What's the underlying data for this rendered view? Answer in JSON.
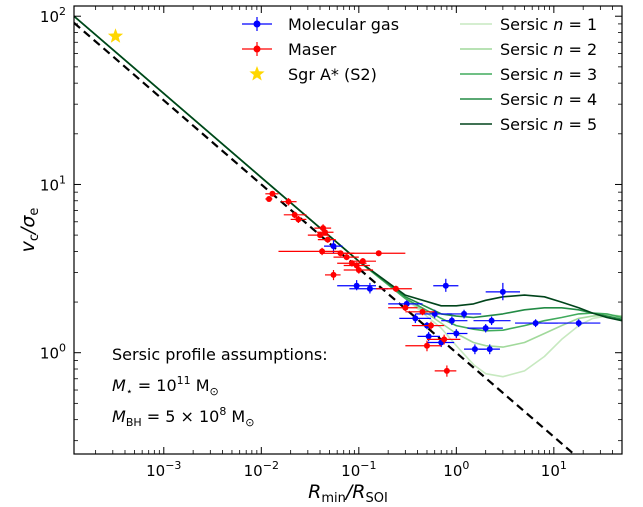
{
  "chart_data": {
    "type": "scatter",
    "x_scale": "log",
    "y_scale": "log",
    "xlim": [
      0.00012,
      50
    ],
    "ylim": [
      0.25,
      115
    ],
    "xlabel": {
      "main": "R",
      "sub1": "min",
      "sep": "/R",
      "sub2": "SOI"
    },
    "ylabel": {
      "main": "v",
      "sub1": "c",
      "sep": "/σ",
      "sub2": "e"
    },
    "x_ticks": [
      {
        "value": 0.001,
        "base": "10",
        "exp": "−3"
      },
      {
        "value": 0.01,
        "base": "10",
        "exp": "−2"
      },
      {
        "value": 0.1,
        "base": "10",
        "exp": "−1"
      },
      {
        "value": 1,
        "base": "10",
        "exp": "0"
      },
      {
        "value": 10,
        "base": "10",
        "exp": "1"
      }
    ],
    "y_ticks": [
      {
        "value": 1,
        "base": "10",
        "exp": "0"
      },
      {
        "value": 10,
        "base": "10",
        "exp": "1"
      },
      {
        "value": 100,
        "base": "10",
        "exp": "2"
      }
    ],
    "grid": false,
    "legend_position": "top-right",
    "legend": [
      {
        "label": "Molecular gas",
        "kind": "errpoint",
        "color": "#0000ff"
      },
      {
        "label": "Maser",
        "kind": "errpoint",
        "color": "#ff0000"
      },
      {
        "label": "Sgr A* (S2)",
        "kind": "star",
        "color": "#ffd700"
      },
      {
        "label_prefix": "Sersic ",
        "label_var": "n",
        "label_suffix": " = 1",
        "kind": "line",
        "color": "#c7e9c0"
      },
      {
        "label_prefix": "Sersic ",
        "label_var": "n",
        "label_suffix": " = 2",
        "kind": "line",
        "color": "#a1d99b"
      },
      {
        "label_prefix": "Sersic ",
        "label_var": "n",
        "label_suffix": " = 3",
        "kind": "line",
        "color": "#41ab5d"
      },
      {
        "label_prefix": "Sersic ",
        "label_var": "n",
        "label_suffix": " = 4",
        "kind": "line",
        "color": "#238b45"
      },
      {
        "label_prefix": "Sersic ",
        "label_var": "n",
        "label_suffix": " = 5",
        "kind": "line",
        "color": "#00441b"
      }
    ],
    "annotation": {
      "title": "Sersic profile assumptions:",
      "line1": {
        "sym": "M",
        "sub": "⋆",
        "eq": " = 10",
        "exp": "11",
        "unit": " M",
        "usub": "⊙"
      },
      "line2": {
        "sym": "M",
        "sub": "BH",
        "eq": " = 5 × 10",
        "exp": "8",
        "unit": " M",
        "usub": "⊙"
      }
    },
    "series": [
      {
        "name": "Molecular gas",
        "color": "#0000ff",
        "points": [
          {
            "x": 0.055,
            "y": 4.3,
            "xlo": 0.044,
            "xhi": 0.068,
            "ylo": 3.9,
            "yhi": 4.7
          },
          {
            "x": 0.095,
            "y": 2.5,
            "xlo": 0.06,
            "xhi": 0.15,
            "ylo": 2.35,
            "yhi": 2.7
          },
          {
            "x": 0.13,
            "y": 2.4,
            "xlo": 0.08,
            "xhi": 0.2,
            "ylo": 2.25,
            "yhi": 2.6
          },
          {
            "x": 0.31,
            "y": 1.95,
            "xlo": 0.2,
            "xhi": 0.45,
            "ylo": 1.85,
            "yhi": 2.05
          },
          {
            "x": 0.38,
            "y": 1.6,
            "xlo": 0.26,
            "xhi": 0.55,
            "ylo": 1.5,
            "yhi": 1.7
          },
          {
            "x": 0.5,
            "y": 1.45,
            "xlo": 0.36,
            "xhi": 0.7,
            "ylo": 1.38,
            "yhi": 1.52
          },
          {
            "x": 0.6,
            "y": 1.7,
            "xlo": 0.38,
            "xhi": 0.9,
            "ylo": 1.6,
            "yhi": 1.8
          },
          {
            "x": 0.52,
            "y": 1.25,
            "xlo": 0.4,
            "xhi": 0.68,
            "ylo": 1.17,
            "yhi": 1.33
          },
          {
            "x": 0.7,
            "y": 1.15,
            "xlo": 0.5,
            "xhi": 0.95,
            "ylo": 1.08,
            "yhi": 1.22
          },
          {
            "x": 0.78,
            "y": 2.5,
            "xlo": 0.58,
            "xhi": 1.05,
            "ylo": 2.3,
            "yhi": 2.75
          },
          {
            "x": 0.9,
            "y": 1.55,
            "xlo": 0.7,
            "xhi": 1.3,
            "ylo": 1.46,
            "yhi": 1.64
          },
          {
            "x": 1.0,
            "y": 1.3,
            "xlo": 0.8,
            "xhi": 1.3,
            "ylo": 1.22,
            "yhi": 1.38
          },
          {
            "x": 1.2,
            "y": 1.7,
            "xlo": 0.8,
            "xhi": 1.8,
            "ylo": 1.6,
            "yhi": 1.8
          },
          {
            "x": 1.55,
            "y": 1.05,
            "xlo": 1.2,
            "xhi": 2.0,
            "ylo": 0.98,
            "yhi": 1.12
          },
          {
            "x": 2.0,
            "y": 1.4,
            "xlo": 1.3,
            "xhi": 3.0,
            "ylo": 1.32,
            "yhi": 1.48
          },
          {
            "x": 2.2,
            "y": 1.05,
            "xlo": 1.7,
            "xhi": 2.8,
            "ylo": 0.98,
            "yhi": 1.12
          },
          {
            "x": 2.3,
            "y": 1.55,
            "xlo": 1.5,
            "xhi": 3.6,
            "ylo": 1.46,
            "yhi": 1.64
          },
          {
            "x": 3.0,
            "y": 2.3,
            "xlo": 2.0,
            "xhi": 4.5,
            "ylo": 2.05,
            "yhi": 2.6
          },
          {
            "x": 6.5,
            "y": 1.5,
            "xlo": 4.0,
            "xhi": 11,
            "ylo": 1.42,
            "yhi": 1.58
          },
          {
            "x": 18,
            "y": 1.5,
            "xlo": 8,
            "xhi": 30,
            "ylo": 1.42,
            "yhi": 1.58
          }
        ]
      },
      {
        "name": "Maser",
        "color": "#ff0000",
        "points": [
          {
            "x": 0.012,
            "y": 8.2,
            "xlo": 0.011,
            "xhi": 0.013,
            "ylo": 7.9,
            "yhi": 8.5
          },
          {
            "x": 0.013,
            "y": 8.8,
            "xlo": 0.011,
            "xhi": 0.015,
            "ylo": 8.5,
            "yhi": 9.1
          },
          {
            "x": 0.019,
            "y": 7.9,
            "xlo": 0.016,
            "xhi": 0.023,
            "ylo": 7.5,
            "yhi": 8.3
          },
          {
            "x": 0.022,
            "y": 6.6,
            "xlo": 0.017,
            "xhi": 0.029,
            "ylo": 6.3,
            "yhi": 6.9
          },
          {
            "x": 0.024,
            "y": 6.2,
            "xlo": 0.02,
            "xhi": 0.029,
            "ylo": 5.9,
            "yhi": 6.5
          },
          {
            "x": 0.04,
            "y": 5.0,
            "xlo": 0.03,
            "xhi": 0.05,
            "ylo": 4.8,
            "yhi": 5.2
          },
          {
            "x": 0.043,
            "y": 5.5,
            "xlo": 0.035,
            "xhi": 0.052,
            "ylo": 5.2,
            "yhi": 5.8
          },
          {
            "x": 0.045,
            "y": 5.2,
            "xlo": 0.037,
            "xhi": 0.055,
            "ylo": 5.0,
            "yhi": 5.4
          },
          {
            "x": 0.048,
            "y": 4.7,
            "xlo": 0.038,
            "xhi": 0.058,
            "ylo": 4.5,
            "yhi": 4.9
          },
          {
            "x": 0.042,
            "y": 4.0,
            "xlo": 0.015,
            "xhi": 0.065,
            "ylo": 3.8,
            "yhi": 4.2
          },
          {
            "x": 0.055,
            "y": 2.9,
            "xlo": 0.045,
            "xhi": 0.065,
            "ylo": 2.7,
            "yhi": 3.1
          },
          {
            "x": 0.065,
            "y": 3.9,
            "xlo": 0.04,
            "xhi": 0.09,
            "ylo": 3.75,
            "yhi": 4.05
          },
          {
            "x": 0.075,
            "y": 3.7,
            "xlo": 0.055,
            "xhi": 0.1,
            "ylo": 3.55,
            "yhi": 3.85
          },
          {
            "x": 0.085,
            "y": 3.4,
            "xlo": 0.06,
            "xhi": 0.12,
            "ylo": 3.25,
            "yhi": 3.55
          },
          {
            "x": 0.095,
            "y": 3.3,
            "xlo": 0.07,
            "xhi": 0.13,
            "ylo": 3.15,
            "yhi": 3.45
          },
          {
            "x": 0.1,
            "y": 3.1,
            "xlo": 0.07,
            "xhi": 0.14,
            "ylo": 2.95,
            "yhi": 3.25
          },
          {
            "x": 0.11,
            "y": 3.5,
            "xlo": 0.08,
            "xhi": 0.15,
            "ylo": 3.35,
            "yhi": 3.65
          },
          {
            "x": 0.16,
            "y": 3.9,
            "xlo": 0.06,
            "xhi": 0.3,
            "ylo": 3.75,
            "yhi": 4.05
          },
          {
            "x": 0.24,
            "y": 2.4,
            "xlo": 0.15,
            "xhi": 0.35,
            "ylo": 2.3,
            "yhi": 2.5
          },
          {
            "x": 0.3,
            "y": 1.85,
            "xlo": 0.2,
            "xhi": 0.4,
            "ylo": 1.77,
            "yhi": 1.93
          },
          {
            "x": 0.45,
            "y": 1.75,
            "xlo": 0.3,
            "xhi": 0.6,
            "ylo": 1.67,
            "yhi": 1.83
          },
          {
            "x": 0.5,
            "y": 1.1,
            "xlo": 0.3,
            "xhi": 0.7,
            "ylo": 1.02,
            "yhi": 1.18
          },
          {
            "x": 0.55,
            "y": 1.45,
            "xlo": 0.35,
            "xhi": 0.75,
            "ylo": 1.37,
            "yhi": 1.53
          },
          {
            "x": 0.75,
            "y": 1.2,
            "xlo": 0.5,
            "xhi": 1.1,
            "ylo": 1.12,
            "yhi": 1.28
          },
          {
            "x": 0.8,
            "y": 0.78,
            "xlo": 0.6,
            "xhi": 1.0,
            "ylo": 0.72,
            "yhi": 0.84
          }
        ]
      },
      {
        "name": "Sgr A* (S2)",
        "color": "#ffd700",
        "points": [
          {
            "x": 0.00032,
            "y": 76
          }
        ]
      }
    ],
    "lines": [
      {
        "name": "keplerian",
        "style": "dashed",
        "color": "#000000",
        "slope": -0.5,
        "anchor_y_at_x1": 1.0
      },
      {
        "name": "Sersic n = 1",
        "color": "#c7e9c0",
        "points": [
          [
            0.00012,
            100
          ],
          [
            0.01,
            11
          ],
          [
            0.1,
            3.5
          ],
          [
            0.3,
            2.1
          ],
          [
            0.7,
            1.4
          ],
          [
            1,
            1.1
          ],
          [
            1.5,
            0.85
          ],
          [
            2,
            0.75
          ],
          [
            3,
            0.72
          ],
          [
            5,
            0.78
          ],
          [
            8,
            0.95
          ],
          [
            12,
            1.2
          ],
          [
            18,
            1.45
          ],
          [
            25,
            1.6
          ],
          [
            35,
            1.65
          ],
          [
            50,
            1.6
          ]
        ]
      },
      {
        "name": "Sersic n = 2",
        "color": "#a1d99b",
        "points": [
          [
            0.00012,
            100
          ],
          [
            0.01,
            11
          ],
          [
            0.1,
            3.5
          ],
          [
            0.3,
            2.1
          ],
          [
            0.7,
            1.5
          ],
          [
            1,
            1.3
          ],
          [
            1.5,
            1.15
          ],
          [
            2,
            1.1
          ],
          [
            3,
            1.08
          ],
          [
            5,
            1.15
          ],
          [
            8,
            1.3
          ],
          [
            12,
            1.45
          ],
          [
            18,
            1.6
          ],
          [
            25,
            1.65
          ],
          [
            35,
            1.68
          ],
          [
            50,
            1.65
          ]
        ]
      },
      {
        "name": "Sersic n = 3",
        "color": "#41ab5d",
        "points": [
          [
            0.00012,
            100
          ],
          [
            0.01,
            11
          ],
          [
            0.1,
            3.5
          ],
          [
            0.3,
            2.1
          ],
          [
            0.7,
            1.6
          ],
          [
            1,
            1.45
          ],
          [
            1.5,
            1.38
          ],
          [
            2,
            1.35
          ],
          [
            3,
            1.36
          ],
          [
            5,
            1.45
          ],
          [
            8,
            1.55
          ],
          [
            12,
            1.62
          ],
          [
            18,
            1.7
          ],
          [
            25,
            1.72
          ],
          [
            35,
            1.7
          ],
          [
            50,
            1.62
          ]
        ]
      },
      {
        "name": "Sersic n = 4",
        "color": "#238b45",
        "points": [
          [
            0.00012,
            100
          ],
          [
            0.01,
            11
          ],
          [
            0.1,
            3.5
          ],
          [
            0.3,
            2.15
          ],
          [
            0.7,
            1.7
          ],
          [
            1,
            1.65
          ],
          [
            1.5,
            1.62
          ],
          [
            2,
            1.65
          ],
          [
            3,
            1.7
          ],
          [
            5,
            1.8
          ],
          [
            8,
            1.85
          ],
          [
            12,
            1.85
          ],
          [
            18,
            1.8
          ],
          [
            25,
            1.72
          ],
          [
            35,
            1.65
          ],
          [
            50,
            1.58
          ]
        ]
      },
      {
        "name": "Sersic n = 5",
        "color": "#00441b",
        "points": [
          [
            0.00012,
            100
          ],
          [
            0.01,
            11
          ],
          [
            0.1,
            3.5
          ],
          [
            0.3,
            2.2
          ],
          [
            0.7,
            1.9
          ],
          [
            1,
            1.9
          ],
          [
            1.5,
            1.95
          ],
          [
            2,
            2.05
          ],
          [
            3,
            2.15
          ],
          [
            5,
            2.2
          ],
          [
            8,
            2.15
          ],
          [
            12,
            2.0
          ],
          [
            18,
            1.85
          ],
          [
            25,
            1.72
          ],
          [
            35,
            1.62
          ],
          [
            50,
            1.55
          ]
        ]
      }
    ]
  }
}
